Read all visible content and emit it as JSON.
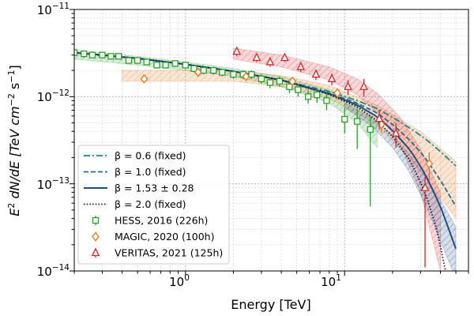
{
  "chart_data": {
    "type": "scatter",
    "xscale": "log",
    "yscale": "log",
    "xlim": [
      0.2,
      60
    ],
    "ylim": [
      1e-14,
      1e-11
    ],
    "grid": true,
    "xlabel": "Energy [TeV]",
    "ylabel": {
      "base": "E",
      "sup1": "2",
      "mid": " dN/dE [TeV cm",
      "sup2": "−2",
      "mid2": " s",
      "sup3": "−1",
      "end": "]"
    },
    "x_ticks": [
      {
        "value": 1,
        "base": "10",
        "exp": "0"
      },
      {
        "value": 10,
        "base": "10",
        "exp": "1"
      }
    ],
    "y_ticks": [
      {
        "value": 1e-14,
        "base": "10",
        "exp": "−14"
      },
      {
        "value": 1e-13,
        "base": "10",
        "exp": "−13"
      },
      {
        "value": 1e-12,
        "base": "10",
        "exp": "−12"
      },
      {
        "value": 1e-11,
        "base": "10",
        "exp": "−11"
      }
    ],
    "colors": {
      "hess": "#2ca02c",
      "magic": "#e6761a",
      "veritas": "#d62728",
      "model_teal": "#1a8a7a",
      "model_navy": "#1f4e86",
      "model_dark": "#0d1b4a"
    },
    "legend": {
      "position": "lower-left",
      "entries": [
        {
          "key": "beta06",
          "label": "β = 0.6 (fixed)",
          "color": "#1a8a7a",
          "style": "dashdot",
          "marker": ""
        },
        {
          "key": "beta10",
          "label": "β = 1.0 (fixed)",
          "color": "#1f6e8c",
          "style": "dashed",
          "marker": ""
        },
        {
          "key": "beta153",
          "label": "β = 1.53 ± 0.28",
          "color": "#1f4e86",
          "style": "solid",
          "marker": ""
        },
        {
          "key": "beta20",
          "label": "β = 2.0 (fixed)",
          "color": "#0d1b4a",
          "style": "dotted",
          "marker": ""
        },
        {
          "key": "hess",
          "label": "HESS, 2016 (226h)",
          "color": "#2ca02c",
          "style": "none",
          "marker": "square"
        },
        {
          "key": "magic",
          "label": "MAGIC, 2020 (100h)",
          "color": "#e6761a",
          "style": "none",
          "marker": "diamond"
        },
        {
          "key": "veritas",
          "label": "VERITAS, 2021 (125h)",
          "color": "#d62728",
          "style": "none",
          "marker": "triangle"
        }
      ]
    },
    "series": [
      {
        "name": "HESS, 2016 (226h)",
        "key": "hess",
        "marker": "square",
        "color": "#2ca02c",
        "points": [
          {
            "x": 0.2,
            "y": 3.2e-12,
            "ylo": 2.9e-12,
            "yhi": 3.6e-12
          },
          {
            "x": 0.23,
            "y": 3.1e-12,
            "ylo": 2.8e-12,
            "yhi": 3.4e-12
          },
          {
            "x": 0.26,
            "y": 3e-12,
            "ylo": 2.8e-12,
            "yhi": 3.3e-12
          },
          {
            "x": 0.3,
            "y": 3e-12,
            "ylo": 2.8e-12,
            "yhi": 3.2e-12
          },
          {
            "x": 0.34,
            "y": 2.9e-12,
            "ylo": 2.7e-12,
            "yhi": 3.1e-12
          },
          {
            "x": 0.38,
            "y": 2.9e-12,
            "ylo": 2.7e-12,
            "yhi": 3.1e-12
          },
          {
            "x": 0.44,
            "y": 2.6e-12,
            "ylo": 2.4e-12,
            "yhi": 2.8e-12
          },
          {
            "x": 0.5,
            "y": 2.6e-12,
            "ylo": 2.4e-12,
            "yhi": 2.8e-12
          },
          {
            "x": 0.57,
            "y": 2.5e-12,
            "ylo": 2.3e-12,
            "yhi": 2.7e-12
          },
          {
            "x": 0.66,
            "y": 2.3e-12,
            "ylo": 2.1e-12,
            "yhi": 2.5e-12
          },
          {
            "x": 0.75,
            "y": 2.3e-12,
            "ylo": 2.1e-12,
            "yhi": 2.5e-12
          },
          {
            "x": 0.86,
            "y": 2.4e-12,
            "ylo": 2.2e-12,
            "yhi": 2.6e-12
          },
          {
            "x": 1.0,
            "y": 2.3e-12,
            "ylo": 2.1e-12,
            "yhi": 2.5e-12
          },
          {
            "x": 1.13,
            "y": 2.1e-12,
            "ylo": 1.9e-12,
            "yhi": 2.3e-12
          },
          {
            "x": 1.3,
            "y": 2e-12,
            "ylo": 1.8e-12,
            "yhi": 2.2e-12
          },
          {
            "x": 1.5,
            "y": 2e-12,
            "ylo": 1.8e-12,
            "yhi": 2.2e-12
          },
          {
            "x": 1.7,
            "y": 1.9e-12,
            "ylo": 1.7e-12,
            "yhi": 2.1e-12
          },
          {
            "x": 2.0,
            "y": 1.8e-12,
            "ylo": 1.6e-12,
            "yhi": 2e-12
          },
          {
            "x": 2.3,
            "y": 1.8e-12,
            "ylo": 1.6e-12,
            "yhi": 2e-12
          },
          {
            "x": 2.6,
            "y": 1.8e-12,
            "ylo": 1.6e-12,
            "yhi": 2e-12
          },
          {
            "x": 3.0,
            "y": 1.6e-12,
            "ylo": 1.4e-12,
            "yhi": 1.8e-12
          },
          {
            "x": 3.4,
            "y": 1.45e-12,
            "ylo": 1.25e-12,
            "yhi": 1.65e-12
          },
          {
            "x": 3.9,
            "y": 1.5e-12,
            "ylo": 1.3e-12,
            "yhi": 1.7e-12
          },
          {
            "x": 4.5,
            "y": 1.3e-12,
            "ylo": 1.1e-12,
            "yhi": 1.5e-12
          },
          {
            "x": 5.1,
            "y": 1.2e-12,
            "ylo": 1e-12,
            "yhi": 1.4e-12
          },
          {
            "x": 5.9,
            "y": 1e-12,
            "ylo": 8.3e-13,
            "yhi": 1.2e-12
          },
          {
            "x": 6.7,
            "y": 1.05e-12,
            "ylo": 8.5e-13,
            "yhi": 1.25e-12
          },
          {
            "x": 7.7,
            "y": 9e-13,
            "ylo": 7e-13,
            "yhi": 1.1e-12
          },
          {
            "x": 10.0,
            "y": 5.5e-13,
            "ylo": 3.8e-13,
            "yhi": 7.5e-13
          },
          {
            "x": 12.0,
            "y": 5.2e-13,
            "ylo": 2.5e-13,
            "yhi": 7.5e-13
          },
          {
            "x": 14.5,
            "y": 4.2e-13,
            "ylo": 5.5e-14,
            "yhi": 6e-13
          }
        ]
      },
      {
        "name": "MAGIC, 2020 (100h)",
        "key": "magic",
        "marker": "diamond",
        "color": "#e6761a",
        "points": [
          {
            "x": 0.55,
            "y": 1.6e-12,
            "ylo": 1.45e-12,
            "yhi": 1.75e-12
          },
          {
            "x": 1.2,
            "y": 1.9e-12,
            "ylo": 1.75e-12,
            "yhi": 2.05e-12
          },
          {
            "x": 2.4,
            "y": 1.7e-12,
            "ylo": 1.55e-12,
            "yhi": 1.85e-12
          },
          {
            "x": 4.7,
            "y": 1.5e-12,
            "ylo": 1.35e-12,
            "yhi": 1.65e-12
          },
          {
            "x": 9.0,
            "y": 1.1e-12,
            "ylo": 9.5e-13,
            "yhi": 1.25e-12
          },
          {
            "x": 17.0,
            "y": 4.8e-13,
            "ylo": 3.8e-13,
            "yhi": 5.8e-13
          },
          {
            "x": 34.0,
            "y": 1.7e-13,
            "ylo": 1.1e-13,
            "yhi": 2.3e-13
          }
        ]
      },
      {
        "name": "VERITAS, 2021 (125h)",
        "key": "veritas",
        "marker": "triangle",
        "color": "#d62728",
        "points": [
          {
            "x": 2.1,
            "y": 3.3e-12,
            "ylo": 2.9e-12,
            "yhi": 3.7e-12
          },
          {
            "x": 2.8,
            "y": 2.8e-12,
            "ylo": 2.5e-12,
            "yhi": 3.1e-12
          },
          {
            "x": 3.4,
            "y": 2.5e-12,
            "ylo": 2.2e-12,
            "yhi": 2.8e-12
          },
          {
            "x": 4.2,
            "y": 2.8e-12,
            "ylo": 2.5e-12,
            "yhi": 3.1e-12
          },
          {
            "x": 5.3,
            "y": 2.2e-12,
            "ylo": 1.9e-12,
            "yhi": 2.5e-12
          },
          {
            "x": 6.6,
            "y": 1.8e-12,
            "ylo": 1.55e-12,
            "yhi": 2.05e-12
          },
          {
            "x": 8.3,
            "y": 1.6e-12,
            "ylo": 1.35e-12,
            "yhi": 1.85e-12
          },
          {
            "x": 10.5,
            "y": 1.3e-12,
            "ylo": 1.05e-12,
            "yhi": 1.55e-12
          },
          {
            "x": 13.2,
            "y": 1.3e-12,
            "ylo": 1e-12,
            "yhi": 1.6e-12
          },
          {
            "x": 16.5,
            "y": 5.6e-13,
            "ylo": 4.2e-13,
            "yhi": 7e-13
          },
          {
            "x": 21.0,
            "y": 3.8e-13,
            "ylo": 2.6e-13,
            "yhi": 5e-13
          },
          {
            "x": 32.0,
            "y": 9e-14,
            "ylo": 1.1e-14,
            "yhi": 1.2e-13
          }
        ]
      }
    ],
    "bands": [
      {
        "key": "hess",
        "color": "#2ca02c",
        "x": [
          0.2,
          0.5,
          1,
          2,
          4,
          8,
          12,
          16
        ],
        "lo": [
          2.7e-12,
          2.3e-12,
          2e-12,
          1.7e-12,
          1.3e-12,
          8.5e-13,
          5e-13,
          2.6e-13
        ],
        "hi": [
          3.4e-12,
          2.9e-12,
          2.5e-12,
          2.1e-12,
          1.7e-12,
          1.2e-12,
          8.5e-13,
          5.5e-13
        ]
      },
      {
        "key": "magic",
        "color": "#e6761a",
        "x": [
          0.4,
          1,
          2,
          4,
          8,
          16,
          30,
          50
        ],
        "lo": [
          1.5e-12,
          1.5e-12,
          1.5e-12,
          1.3e-12,
          9.5e-13,
          4.8e-13,
          1.4e-13,
          4e-14
        ],
        "hi": [
          2e-12,
          2e-12,
          1.95e-12,
          1.75e-12,
          1.35e-12,
          8e-13,
          4e-13,
          1.8e-13
        ]
      },
      {
        "key": "veritas",
        "color": "#d62728",
        "x": [
          2,
          4,
          8,
          12,
          16,
          22,
          30,
          40
        ],
        "lo": [
          2.7e-12,
          2.2e-12,
          1.55e-12,
          1.05e-12,
          6.5e-13,
          3e-13,
          8e-14,
          1e-14
        ],
        "hi": [
          3.6e-12,
          3e-12,
          2.2e-12,
          1.6e-12,
          1.1e-12,
          6e-13,
          2.5e-13,
          8e-14
        ]
      },
      {
        "key": "fit",
        "color": "#1f4e86",
        "x": [
          10,
          15,
          20,
          25,
          30,
          35,
          40,
          45,
          50
        ],
        "lo": [
          7.5e-13,
          4.5e-13,
          2.6e-13,
          1.45e-13,
          7.5e-14,
          4e-14,
          2.2e-14,
          1.3e-14,
          8e-15
        ],
        "hi": [
          8.5e-13,
          5.6e-13,
          3.6e-13,
          2.3e-13,
          1.45e-13,
          9.5e-14,
          6.5e-14,
          4.5e-14,
          3.2e-14
        ]
      }
    ],
    "model_curves": [
      {
        "key": "beta06",
        "color": "#1a8a7a",
        "style": "dashdot",
        "x": [
          0.2,
          0.5,
          1,
          2,
          4,
          8,
          12,
          16,
          20,
          26,
          32,
          40,
          50
        ],
        "y": [
          3.2e-12,
          2.75e-12,
          2.35e-12,
          1.95e-12,
          1.55e-12,
          1.15e-12,
          9e-13,
          7.3e-13,
          5.8e-13,
          4.3e-13,
          3.3e-13,
          2.35e-13,
          1.6e-13
        ]
      },
      {
        "key": "beta10",
        "color": "#1f6e8c",
        "style": "dashed",
        "x": [
          0.2,
          0.5,
          1,
          2,
          4,
          8,
          12,
          16,
          20,
          26,
          32,
          40,
          50
        ],
        "y": [
          3.2e-12,
          2.75e-12,
          2.35e-12,
          1.95e-12,
          1.55e-12,
          1.1e-12,
          8.4e-13,
          6.5e-13,
          4.8e-13,
          3.1e-13,
          2e-13,
          1.1e-13,
          5.5e-14
        ]
      },
      {
        "key": "beta153",
        "color": "#1f4e86",
        "style": "solid",
        "x": [
          0.2,
          0.5,
          1,
          2,
          4,
          8,
          12,
          16,
          20,
          26,
          32,
          40,
          50
        ],
        "y": [
          3.2e-12,
          2.75e-12,
          2.35e-12,
          1.95e-12,
          1.55e-12,
          1.08e-12,
          8e-13,
          5.9e-13,
          4.1e-13,
          2.4e-13,
          1.3e-13,
          5.5e-14,
          1.8e-14
        ]
      },
      {
        "key": "beta20",
        "color": "#0d1b4a",
        "style": "dotted",
        "x": [
          0.2,
          0.5,
          1,
          2,
          4,
          8,
          12,
          16,
          20,
          26,
          32,
          38,
          43
        ],
        "y": [
          3.2e-12,
          2.75e-12,
          2.35e-12,
          1.95e-12,
          1.55e-12,
          1.06e-12,
          7.6e-13,
          5.3e-13,
          3.5e-13,
          1.8e-13,
          8e-14,
          3e-14,
          1e-14
        ]
      }
    ]
  }
}
